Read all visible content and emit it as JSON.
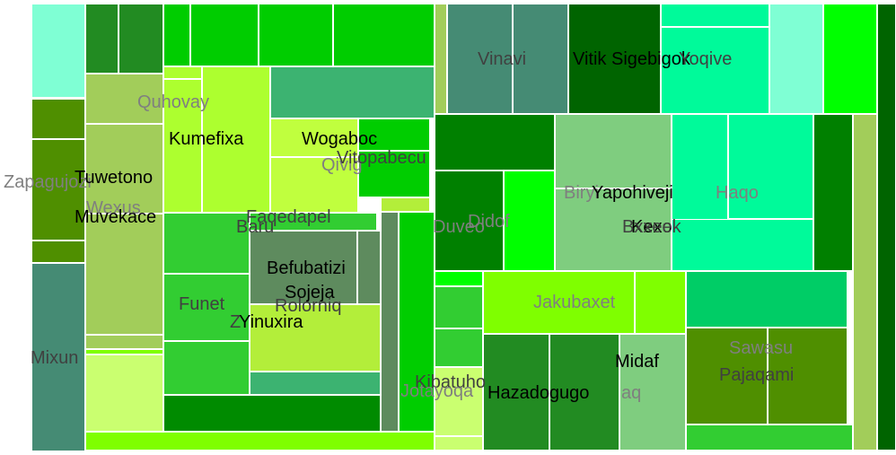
{
  "chart_data": {
    "type": "treemap",
    "labels": [
      {
        "name": "Zapagujozi",
        "color": "#7f7f7f"
      },
      {
        "name": "Tuwetono",
        "color": "#000000"
      },
      {
        "name": "Wexus",
        "color": "#7f7f7f"
      },
      {
        "name": "Muvekace",
        "color": "#000000"
      },
      {
        "name": "Mixun",
        "color": "#404040"
      },
      {
        "name": "Quhovay",
        "color": "#7f7f7f"
      },
      {
        "name": "Kumefixa",
        "color": "#000000"
      },
      {
        "name": "Wogaboc",
        "color": "#000000"
      },
      {
        "name": "Qivig",
        "color": "#7f7f7f"
      },
      {
        "name": "Vitopabecu",
        "color": "#404040"
      },
      {
        "name": "Faqedapel",
        "color": "#404040"
      },
      {
        "name": "Baru",
        "color": "#404040"
      },
      {
        "name": "Befubatizi",
        "color": "#000000"
      },
      {
        "name": "Sojeja",
        "color": "#000000"
      },
      {
        "name": "Rolorniq",
        "color": "#404040"
      },
      {
        "name": "Funet",
        "color": "#404040"
      },
      {
        "name": "Yinuxira",
        "color": "#000000"
      },
      {
        "name": "Z",
        "color": "#404040"
      },
      {
        "name": "Kibatuho",
        "color": "#404040"
      },
      {
        "name": "Jotayoqa",
        "color": "#7f7f7f"
      },
      {
        "name": "Vinavi",
        "color": "#404040"
      },
      {
        "name": "Vitik",
        "color": "#000000"
      },
      {
        "name": "Sigebigok",
        "color": "#000000"
      },
      {
        "name": "Yoqive",
        "color": "#404040"
      },
      {
        "name": "Biryi",
        "color": "#7f7f7f"
      },
      {
        "name": "Yapohiveji",
        "color": "#000000"
      },
      {
        "name": "Haqo",
        "color": "#7f7f7f"
      },
      {
        "name": "Kexo",
        "color": "#000000"
      },
      {
        "name": "Bxxeek",
        "color": "#404040"
      },
      {
        "name": "Didof",
        "color": "#7f7f7f"
      },
      {
        "name": "Duveo",
        "color": "#7f7f7f"
      },
      {
        "name": "Jakubaxet",
        "color": "#7f7f7f"
      },
      {
        "name": "Hazadogugo",
        "color": "#000000"
      },
      {
        "name": "aq",
        "color": "#7f7f7f"
      },
      {
        "name": "Midaf",
        "color": "#000000"
      },
      {
        "name": "Sawasu",
        "color": "#7f7f7f"
      },
      {
        "name": "Pajaqami",
        "color": "#404040"
      }
    ],
    "rects": [
      {
        "color": "#7fffd4"
      },
      {
        "color": "#4f8f00"
      },
      {
        "color": "#4f8f00"
      },
      {
        "color": "#4f8f00"
      },
      {
        "color": "#458b74"
      },
      {
        "color": "#228b22"
      },
      {
        "color": "#228b22"
      },
      {
        "color": "#00cd00"
      },
      {
        "color": "#00cd00"
      },
      {
        "color": "#00cd00"
      },
      {
        "color": "#00cd00"
      },
      {
        "color": "#a2cd5a"
      },
      {
        "color": "#a2cd5a"
      },
      {
        "color": "#a2cd5a"
      },
      {
        "color": "#a2cd5a"
      },
      {
        "color": "#7fff00"
      },
      {
        "color": "#caff70"
      },
      {
        "color": "#adff2f"
      },
      {
        "color": "#adff2f"
      },
      {
        "color": "#3cb371"
      },
      {
        "color": "#c0ff3e"
      },
      {
        "color": "#00cd00"
      },
      {
        "color": "#c0ff3e"
      },
      {
        "color": "#00cd00"
      },
      {
        "color": "#adff2f"
      },
      {
        "color": "#32cd32"
      },
      {
        "color": "#32cd32"
      },
      {
        "color": "#32cd32"
      },
      {
        "color": "#32cd32"
      },
      {
        "color": "#008b00"
      },
      {
        "color": "#5e8b5e"
      },
      {
        "color": "#5e8b5e"
      },
      {
        "color": "#b3ee3a"
      },
      {
        "color": "#b3ee3a"
      },
      {
        "color": "#3cb371"
      },
      {
        "color": "#5e8b5e"
      },
      {
        "color": "#00cd00"
      },
      {
        "color": "#a2cd5a"
      },
      {
        "color": "#458b74"
      },
      {
        "color": "#458b74"
      },
      {
        "color": "#006400"
      },
      {
        "color": "#00fa9a"
      },
      {
        "color": "#00fa9a"
      },
      {
        "color": "#7fffd4"
      },
      {
        "color": "#00ff00"
      },
      {
        "color": "#006400"
      },
      {
        "color": "#008000"
      },
      {
        "color": "#008000"
      },
      {
        "color": "#7fcd7f"
      },
      {
        "color": "#7fcd7f"
      },
      {
        "color": "#00fa9a"
      },
      {
        "color": "#00fa9a"
      },
      {
        "color": "#00ff00"
      },
      {
        "color": "#00ff00"
      },
      {
        "color": "#008000"
      },
      {
        "color": "#a2cd5a"
      },
      {
        "color": "#32cd32"
      },
      {
        "color": "#32cd32"
      },
      {
        "color": "#caff70"
      },
      {
        "color": "#caff70"
      },
      {
        "color": "#00fa9a"
      },
      {
        "color": "#7fff00"
      },
      {
        "color": "#7fff00"
      },
      {
        "color": "#00cd66"
      },
      {
        "color": "#228b22"
      },
      {
        "color": "#228b22"
      },
      {
        "color": "#7fcd7f"
      },
      {
        "color": "#4f8f00"
      },
      {
        "color": "#4f8f00"
      },
      {
        "color": "#32cd32"
      },
      {
        "color": "#7fff00"
      }
    ]
  }
}
